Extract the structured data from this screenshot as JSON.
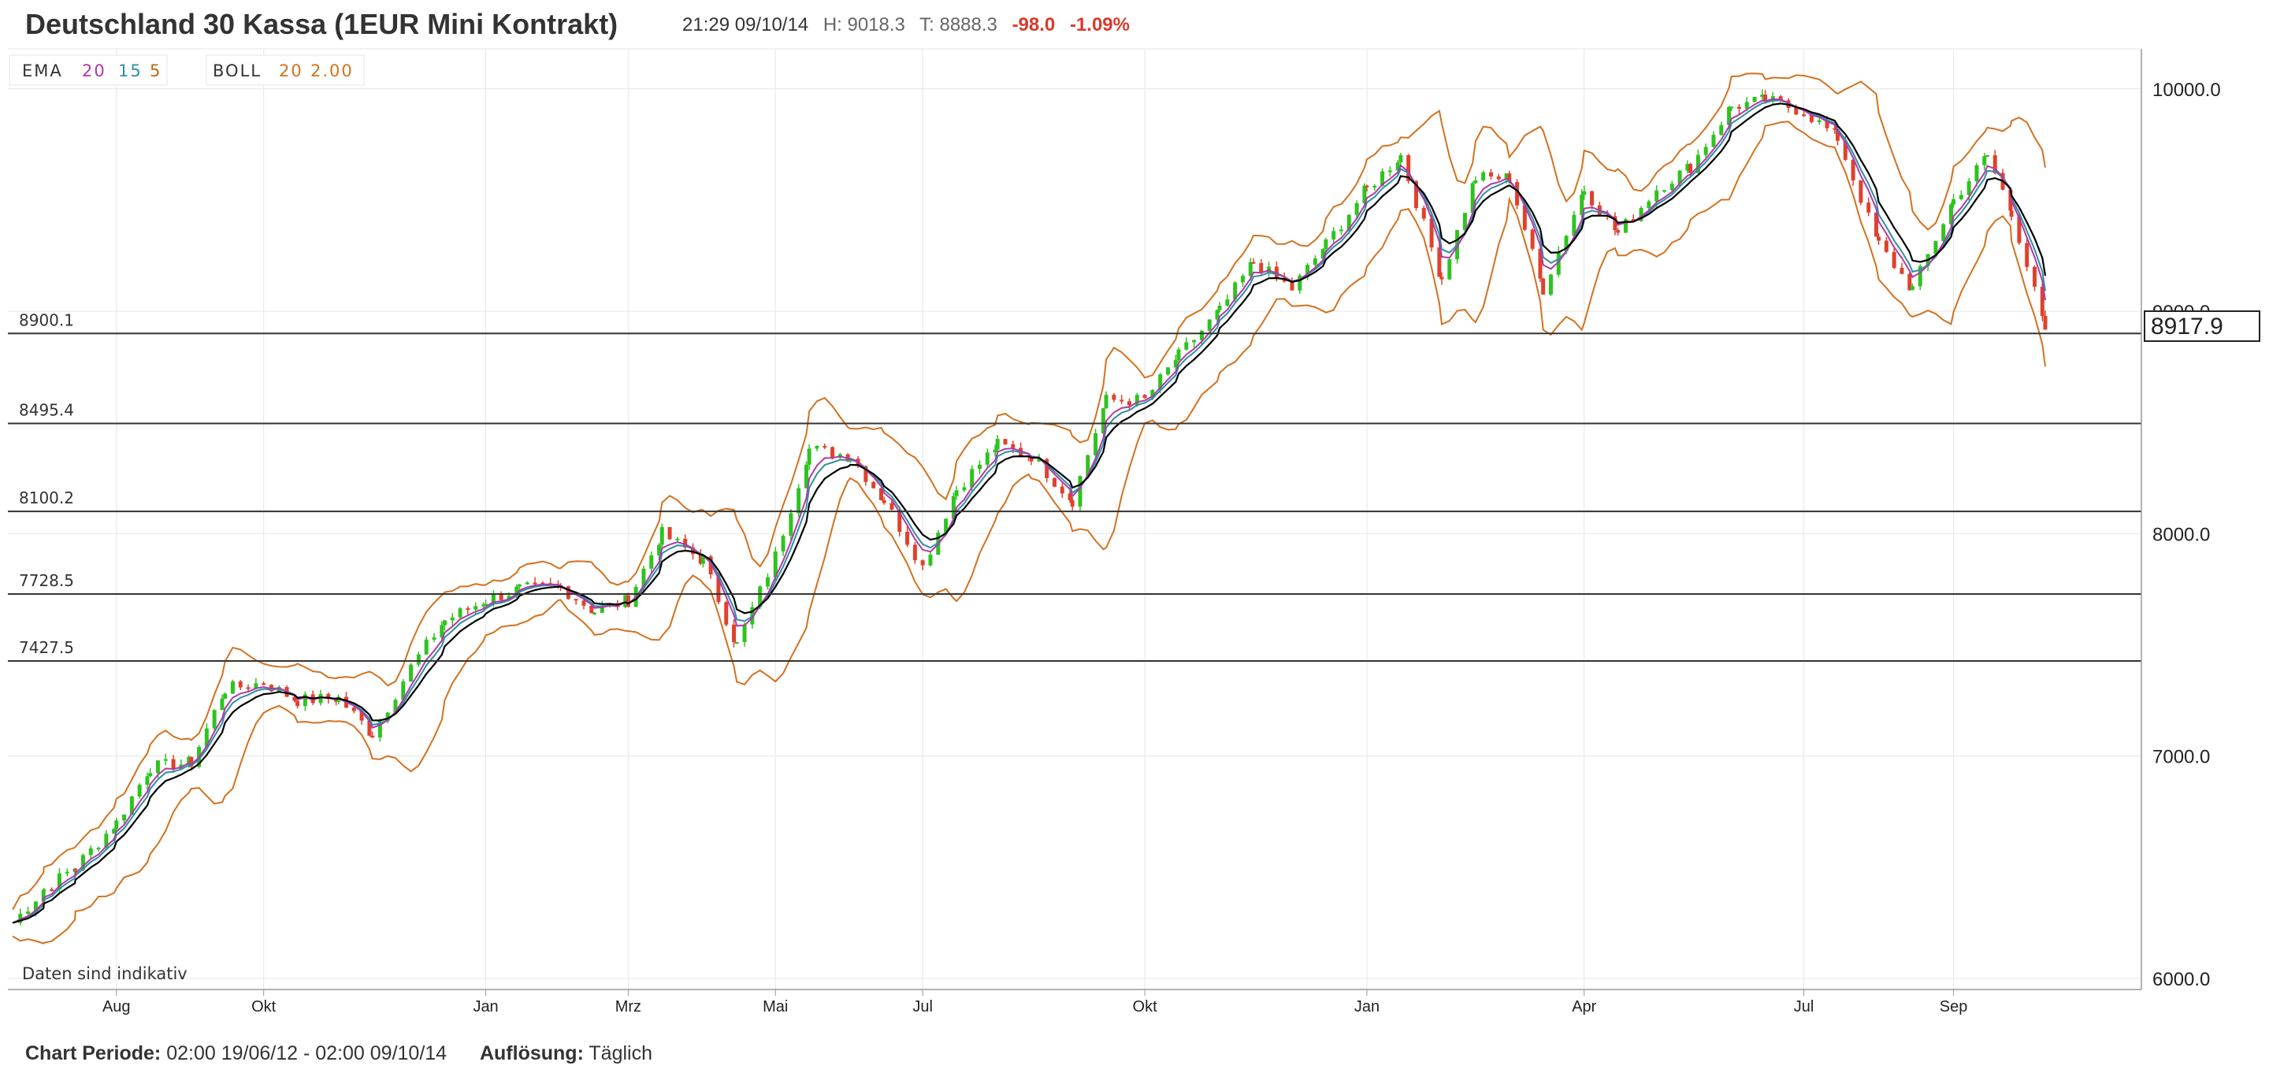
{
  "header": {
    "title": "Deutschland 30 Kassa (1EUR Mini Kontrakt)",
    "timestamp": "21:29 09/10/14",
    "high": "H: 9018.3",
    "low": "T: 8888.3",
    "change": "-98.0",
    "change_pct": "-1.09%"
  },
  "legend": {
    "ema": {
      "label": "EMA",
      "periods": [
        "20",
        "15",
        "5"
      ],
      "colors": [
        "#b03aa8",
        "#2f8fa0",
        "#c06a10"
      ]
    },
    "boll": {
      "label": "BOLL",
      "period": "20",
      "stddev": "2.00",
      "color": "#d4711e"
    }
  },
  "notice": "Daten sind indikativ",
  "footer": {
    "period_label": "Chart Periode:",
    "period_value": "02:00 19/06/12 - 02:00 09/10/14",
    "resolution_label": "Auflösung:",
    "resolution_value": "Täglich"
  },
  "colors": {
    "up": "#2ec31f",
    "down": "#e0412c",
    "boll": "#d4711e",
    "ema20": "#000000",
    "ema15": "#b03aa8",
    "ema5": "#2f8fa0",
    "grid": "#e6e6e6",
    "rule": "#333333"
  },
  "chart_data": {
    "type": "candlestick",
    "title": "Deutschland 30 Kassa (1EUR Mini Kontrakt)",
    "y_axis_position": "right",
    "ylim": [
      5950,
      10180
    ],
    "yticks": [
      6000,
      7000,
      8000,
      9000,
      10000
    ],
    "ytick_labels": [
      "6000.0",
      "7000.0",
      "8000.0",
      "9000.0",
      "10000.0"
    ],
    "grid": true,
    "x_tick_labels": [
      "Aug",
      "Okt",
      "Jan",
      "Mrz",
      "Mai",
      "Jul",
      "Okt",
      "Jan",
      "Apr",
      "Jul",
      "Sep"
    ],
    "x_tick_dates": [
      "2012-08-01",
      "2012-10-01",
      "2013-01-01",
      "2013-03-01",
      "2013-05-01",
      "2013-07-01",
      "2013-10-01",
      "2014-01-01",
      "2014-04-01",
      "2014-07-01",
      "2014-09-01"
    ],
    "x_range": [
      "2012-06-19",
      "2014-10-09"
    ],
    "last_price": "8917.9",
    "horizontal_lines": [
      {
        "value": 8900.1,
        "label": "8900.1"
      },
      {
        "value": 8495.4,
        "label": "8495.4"
      },
      {
        "value": 8100.2,
        "label": "8100.2"
      },
      {
        "value": 7728.5,
        "label": "7728.5"
      },
      {
        "value": 7427.5,
        "label": "7427.5"
      }
    ],
    "series": [
      {
        "date": "2012-06-19",
        "close": 6250
      },
      {
        "date": "2012-07-02",
        "close": 6400
      },
      {
        "date": "2012-07-15",
        "close": 6500
      },
      {
        "date": "2012-08-01",
        "close": 6700
      },
      {
        "date": "2012-08-15",
        "close": 6950
      },
      {
        "date": "2012-09-01",
        "close": 6970
      },
      {
        "date": "2012-09-15",
        "close": 7300
      },
      {
        "date": "2012-10-01",
        "close": 7330
      },
      {
        "date": "2012-10-15",
        "close": 7250
      },
      {
        "date": "2012-11-01",
        "close": 7260
      },
      {
        "date": "2012-11-15",
        "close": 7100
      },
      {
        "date": "2012-12-01",
        "close": 7400
      },
      {
        "date": "2012-12-15",
        "close": 7610
      },
      {
        "date": "2013-01-01",
        "close": 7700
      },
      {
        "date": "2013-01-15",
        "close": 7750
      },
      {
        "date": "2013-02-01",
        "close": 7760
      },
      {
        "date": "2013-02-15",
        "close": 7650
      },
      {
        "date": "2013-03-01",
        "close": 7700
      },
      {
        "date": "2013-03-15",
        "close": 8000
      },
      {
        "date": "2013-04-01",
        "close": 7880
      },
      {
        "date": "2013-04-15",
        "close": 7500
      },
      {
        "date": "2013-05-01",
        "close": 7900
      },
      {
        "date": "2013-05-15",
        "close": 8380
      },
      {
        "date": "2013-06-01",
        "close": 8350
      },
      {
        "date": "2013-06-15",
        "close": 8150
      },
      {
        "date": "2013-07-01",
        "close": 7850
      },
      {
        "date": "2013-07-15",
        "close": 8200
      },
      {
        "date": "2013-08-01",
        "close": 8400
      },
      {
        "date": "2013-08-15",
        "close": 8350
      },
      {
        "date": "2013-09-01",
        "close": 8150
      },
      {
        "date": "2013-09-15",
        "close": 8600
      },
      {
        "date": "2013-10-01",
        "close": 8600
      },
      {
        "date": "2013-10-15",
        "close": 8800
      },
      {
        "date": "2013-11-01",
        "close": 9000
      },
      {
        "date": "2013-11-15",
        "close": 9220
      },
      {
        "date": "2013-12-01",
        "close": 9100
      },
      {
        "date": "2013-12-15",
        "close": 9300
      },
      {
        "date": "2014-01-01",
        "close": 9550
      },
      {
        "date": "2014-01-15",
        "close": 9700
      },
      {
        "date": "2014-02-01",
        "close": 9150
      },
      {
        "date": "2014-02-15",
        "close": 9600
      },
      {
        "date": "2014-03-01",
        "close": 9600
      },
      {
        "date": "2014-03-15",
        "close": 9100
      },
      {
        "date": "2014-04-01",
        "close": 9550
      },
      {
        "date": "2014-04-15",
        "close": 9350
      },
      {
        "date": "2014-05-01",
        "close": 9550
      },
      {
        "date": "2014-05-15",
        "close": 9650
      },
      {
        "date": "2014-06-01",
        "close": 9920
      },
      {
        "date": "2014-06-15",
        "close": 9950
      },
      {
        "date": "2014-07-01",
        "close": 9900
      },
      {
        "date": "2014-07-15",
        "close": 9780
      },
      {
        "date": "2014-08-01",
        "close": 9300
      },
      {
        "date": "2014-08-15",
        "close": 9100
      },
      {
        "date": "2014-09-01",
        "close": 9500
      },
      {
        "date": "2014-09-15",
        "close": 9700
      },
      {
        "date": "2014-09-25",
        "close": 9450
      },
      {
        "date": "2014-10-09",
        "close": 8918
      }
    ]
  }
}
